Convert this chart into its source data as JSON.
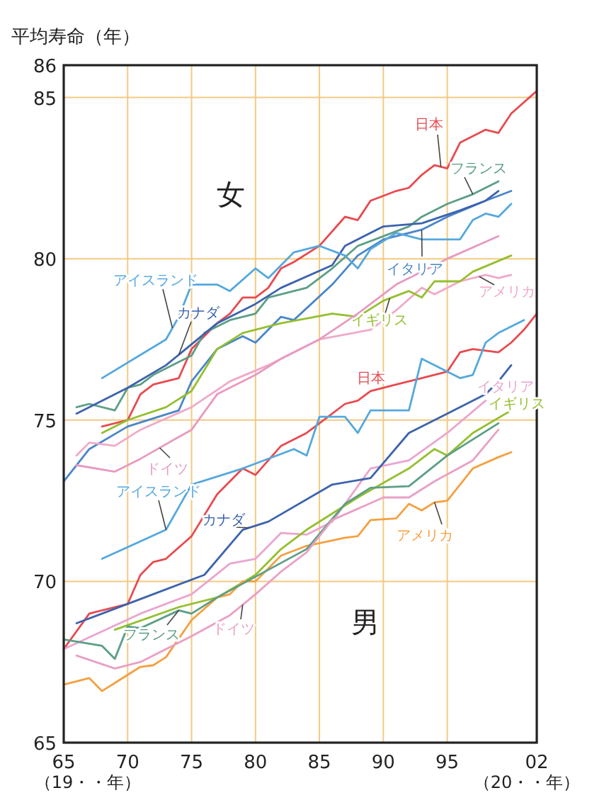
{
  "chart_data": {
    "type": "line",
    "ylabel": "平均寿命（年）",
    "xlim": [
      1965,
      2002
    ],
    "ylim": [
      65,
      86
    ],
    "xticks": [
      {
        "value": 1965,
        "label": "65"
      },
      {
        "value": 1970,
        "label": "70"
      },
      {
        "value": 1975,
        "label": "75"
      },
      {
        "value": 1980,
        "label": "80"
      },
      {
        "value": 1985,
        "label": "85"
      },
      {
        "value": 1990,
        "label": "90"
      },
      {
        "value": 1995,
        "label": "95"
      },
      {
        "value": 2002,
        "label": "02"
      }
    ],
    "yticks": [
      65,
      70,
      75,
      80,
      85,
      86
    ],
    "grid": true,
    "marker": "none",
    "line_style": "solid",
    "annotations": [
      "女",
      "男",
      "（19・・年）",
      "（20・・年）"
    ],
    "series": [
      {
        "name": "日本",
        "color": "#e84a4f",
        "x": [
          1968,
          1970,
          1971,
          1972,
          1974,
          1975,
          1977,
          1978,
          1979,
          1980,
          1981,
          1982,
          1983,
          1985,
          1987,
          1988,
          1989,
          1991,
          1992,
          1993,
          1994,
          1995,
          1996,
          1998,
          1999,
          2000,
          2002
        ],
        "values": [
          74.8,
          75.0,
          75.8,
          76.1,
          76.3,
          77.2,
          78.0,
          78.3,
          78.8,
          78.8,
          79.1,
          79.7,
          79.9,
          80.4,
          81.3,
          81.2,
          81.8,
          82.1,
          82.2,
          82.6,
          82.9,
          82.8,
          83.6,
          84.0,
          83.9,
          84.5,
          85.2
        ]
      },
      {
        "name": "フランス",
        "color": "#5c9e86",
        "x": [
          1966,
          1967,
          1969,
          1970,
          1971,
          1972,
          1974,
          1975,
          1976,
          1978,
          1980,
          1981,
          1984,
          1986,
          1988,
          1992,
          1993,
          1995,
          1997,
          1999
        ],
        "values": [
          75.4,
          75.5,
          75.3,
          76.0,
          76.1,
          76.4,
          76.8,
          77.0,
          77.7,
          78.1,
          78.3,
          78.8,
          79.1,
          79.7,
          80.4,
          81.0,
          81.3,
          81.7,
          82.0,
          82.4
        ]
      },
      {
        "name": "イタリア",
        "color": "#4a86c8",
        "x": [
          1965,
          1967,
          1970,
          1974,
          1975,
          1977,
          1979,
          1980,
          1982,
          1983,
          1986,
          1988,
          1990,
          1993,
          1995,
          1998,
          2000
        ],
        "values": [
          73.1,
          74.1,
          74.8,
          75.3,
          76.2,
          77.2,
          77.6,
          77.4,
          78.2,
          78.1,
          79.2,
          80.1,
          80.6,
          80.9,
          81.3,
          81.8,
          82.1
        ]
      },
      {
        "name": "アメリカ",
        "color": "#f0a9c8",
        "x": [
          1966,
          1967,
          1969,
          1971,
          1975,
          1978,
          1981,
          1985,
          1989,
          1991,
          1993,
          1994,
          1996,
          1998,
          1999,
          2000
        ],
        "values": [
          73.9,
          74.3,
          74.2,
          74.7,
          75.4,
          76.2,
          76.7,
          77.5,
          77.8,
          78.4,
          79.1,
          78.9,
          79.3,
          79.5,
          79.4,
          79.5
        ]
      },
      {
        "name": "イギリス",
        "color": "#94bf2f",
        "x": [
          1968,
          1970,
          1973,
          1975,
          1977,
          1979,
          1982,
          1986,
          1988,
          1990,
          1992,
          1993,
          1994,
          1996,
          1997,
          2000
        ],
        "values": [
          74.6,
          75.0,
          75.4,
          75.9,
          77.2,
          77.7,
          78.0,
          78.3,
          78.2,
          78.7,
          79.0,
          78.8,
          79.3,
          79.3,
          79.6,
          80.1
        ]
      },
      {
        "name": "カナダ",
        "color": "#3d63ad",
        "x": [
          1966,
          1970,
          1973,
          1977,
          1980,
          1982,
          1986,
          1987,
          1990,
          1993,
          1996,
          1998,
          1999
        ],
        "values": [
          75.2,
          76.0,
          76.7,
          78.0,
          78.6,
          79.1,
          79.8,
          80.4,
          81.0,
          81.1,
          81.5,
          81.8,
          82.1
        ]
      },
      {
        "name": "アイスランド",
        "color": "#55a8dd",
        "x": [
          1968,
          1973,
          1974,
          1975,
          1977,
          1978,
          1980,
          1981,
          1982,
          1983,
          1985,
          1987,
          1988,
          1989,
          1991,
          1993,
          1996,
          1997,
          1998,
          1999,
          2000
        ],
        "values": [
          76.3,
          77.5,
          78.2,
          79.2,
          79.2,
          79.0,
          79.7,
          79.4,
          79.8,
          80.2,
          80.4,
          80.1,
          79.7,
          80.3,
          80.8,
          80.6,
          80.6,
          81.2,
          81.4,
          81.3,
          81.7
        ]
      },
      {
        "name": "ドイツ",
        "color": "#e79ac0",
        "x": [
          1966,
          1969,
          1971,
          1975,
          1977,
          1980,
          1982,
          1985,
          1988,
          1991,
          1995,
          1999
        ],
        "values": [
          73.6,
          73.4,
          73.8,
          74.7,
          75.8,
          76.4,
          76.9,
          77.5,
          78.3,
          79.2,
          80.0,
          80.7
        ]
      },
      {
        "name": "日本",
        "color": "#e84a4f",
        "x": [
          1965,
          1967,
          1970,
          1971,
          1972,
          1973,
          1975,
          1977,
          1978,
          1979,
          1980,
          1982,
          1984,
          1985,
          1987,
          1988,
          1989,
          1991,
          1993,
          1995,
          1996,
          1997,
          1999,
          2000,
          2001,
          2002
        ],
        "values": [
          67.9,
          69.0,
          69.3,
          70.2,
          70.6,
          70.7,
          71.4,
          72.7,
          73.1,
          73.5,
          73.3,
          74.2,
          74.6,
          74.9,
          75.5,
          75.6,
          75.9,
          76.1,
          76.3,
          76.5,
          77.1,
          77.2,
          77.1,
          77.4,
          77.8,
          78.3
        ]
      },
      {
        "name": "イタリア",
        "color": "#eaa5cf",
        "x": [
          1965,
          1971,
          1975,
          1978,
          1980,
          1982,
          1984,
          1986,
          1989,
          1992,
          1995,
          1998
        ],
        "values": [
          67.9,
          69.0,
          69.6,
          70.55,
          70.7,
          71.5,
          71.45,
          71.85,
          73.5,
          73.75,
          74.6,
          75.6
        ]
      },
      {
        "name": "イギリス",
        "color": "#94bf2f",
        "x": [
          1969,
          1974,
          1977,
          1980,
          1982,
          1984,
          1988,
          1992,
          1994,
          1995,
          1997,
          2000
        ],
        "values": [
          68.5,
          69.2,
          69.5,
          70.2,
          71.0,
          71.6,
          72.6,
          73.5,
          74.1,
          73.9,
          74.6,
          75.3
        ]
      },
      {
        "name": "アイスランド",
        "color": "#55a8dd",
        "x": [
          1968,
          1973,
          1975,
          1979,
          1983,
          1984,
          1985,
          1987,
          1988,
          1989,
          1992,
          1993,
          1996,
          1997,
          1998,
          1999,
          2001
        ],
        "values": [
          70.7,
          71.6,
          73.0,
          73.5,
          74.1,
          73.9,
          75.1,
          75.1,
          74.6,
          75.3,
          75.3,
          76.9,
          76.3,
          76.4,
          77.4,
          77.7,
          78.1
        ]
      },
      {
        "name": "カナダ",
        "color": "#3d63ad",
        "x": [
          1966,
          1968,
          1971,
          1976,
          1979,
          1981,
          1986,
          1989,
          1992,
          1995,
          1998,
          1999,
          2000
        ],
        "values": [
          68.7,
          69.0,
          69.45,
          70.2,
          71.6,
          71.85,
          73.0,
          73.2,
          74.6,
          75.2,
          75.8,
          76.2,
          76.7
        ]
      },
      {
        "name": "アメリカ",
        "color": "#f4a040",
        "x": [
          1965,
          1967,
          1968,
          1969,
          1971,
          1972,
          1973,
          1975,
          1977,
          1978,
          1979,
          1980,
          1982,
          1984,
          1987,
          1988,
          1989,
          1991,
          1992,
          1993,
          1994,
          1995,
          1997,
          1999,
          2000
        ],
        "values": [
          66.8,
          67.0,
          66.6,
          66.85,
          67.35,
          67.4,
          67.65,
          68.8,
          69.5,
          69.6,
          70.0,
          70.0,
          70.8,
          71.1,
          71.35,
          71.4,
          71.9,
          71.95,
          72.4,
          72.2,
          72.45,
          72.5,
          73.5,
          73.85,
          74.0
        ]
      },
      {
        "name": "フランス",
        "color": "#5c9e86",
        "x": [
          1965,
          1968,
          1969,
          1970,
          1971,
          1974,
          1975,
          1977,
          1984,
          1987,
          1989,
          1992,
          1995,
          1999
        ],
        "values": [
          68.2,
          68.0,
          67.6,
          68.6,
          68.55,
          69.1,
          69.0,
          69.5,
          71.0,
          72.4,
          72.9,
          72.95,
          73.9,
          74.9
        ]
      },
      {
        "name": "ドイツ",
        "color": "#e9a0c4",
        "x": [
          1966,
          1969,
          1971,
          1975,
          1978,
          1980,
          1982,
          1984,
          1986,
          1990,
          1992,
          1994,
          1997,
          1999
        ],
        "values": [
          67.7,
          67.3,
          67.5,
          68.3,
          68.95,
          69.6,
          70.3,
          70.9,
          71.9,
          72.6,
          72.6,
          73.1,
          73.75,
          74.7
        ]
      }
    ]
  }
}
